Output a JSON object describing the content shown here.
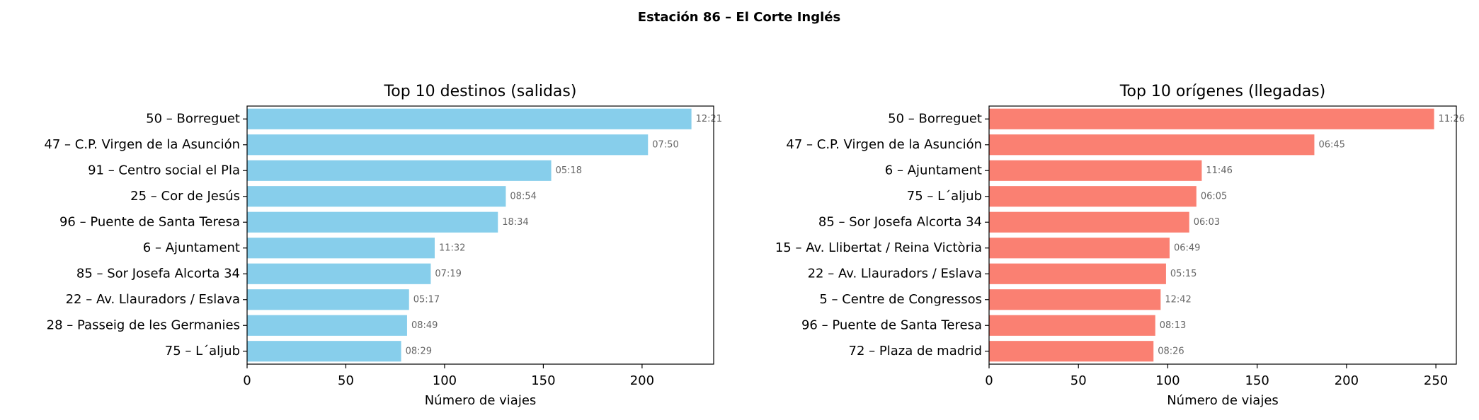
{
  "title": "Estación 86 – El Corte Inglés",
  "chart_data": [
    {
      "type": "barh",
      "title": "Top 10 destinos (salidas)",
      "xlabel": "Número de viajes",
      "color": "#87ceeb",
      "categories": [
        "50 – Borreguet",
        "47 – C.P. Virgen de la Asunción",
        "91 – Centro social el Pla",
        "25 – Cor de Jesús",
        "96 – Puente de Santa Teresa",
        "6 – Ajuntament",
        "85 – Sor Josefa Alcorta 34",
        "22 – Av. Llauradors / Eslava",
        "28 – Passeig de les Germanies",
        "75 – L´aljub"
      ],
      "values": [
        225,
        203,
        154,
        131,
        127,
        95,
        93,
        82,
        81,
        78
      ],
      "bar_labels": [
        "12:21",
        "07:50",
        "05:18",
        "08:54",
        "18:34",
        "11:32",
        "07:19",
        "05:17",
        "08:49",
        "08:29"
      ],
      "xlim": [
        0,
        236.25
      ],
      "xticks": [
        0,
        50,
        100,
        150,
        200
      ]
    },
    {
      "type": "barh",
      "title": "Top 10 orígenes (llegadas)",
      "xlabel": "Número de viajes",
      "color": "#fa8072",
      "categories": [
        "50 – Borreguet",
        "47 – C.P. Virgen de la Asunción",
        "6 – Ajuntament",
        "75 – L´aljub",
        "85 – Sor Josefa Alcorta 34",
        "15 – Av. Llibertat / Reina Victòria",
        "22 – Av. Llauradors / Eslava",
        "5 – Centre de Congressos",
        "96 – Puente de Santa Teresa",
        "72 – Plaza de madrid"
      ],
      "values": [
        249,
        182,
        119,
        116,
        112,
        101,
        99,
        96,
        93,
        92
      ],
      "bar_labels": [
        "11:26",
        "06:45",
        "11:46",
        "06:05",
        "06:03",
        "06:49",
        "05:15",
        "12:42",
        "08:13",
        "08:26"
      ],
      "xlim": [
        0,
        261.45
      ],
      "xticks": [
        0,
        50,
        100,
        150,
        200,
        250
      ]
    }
  ]
}
